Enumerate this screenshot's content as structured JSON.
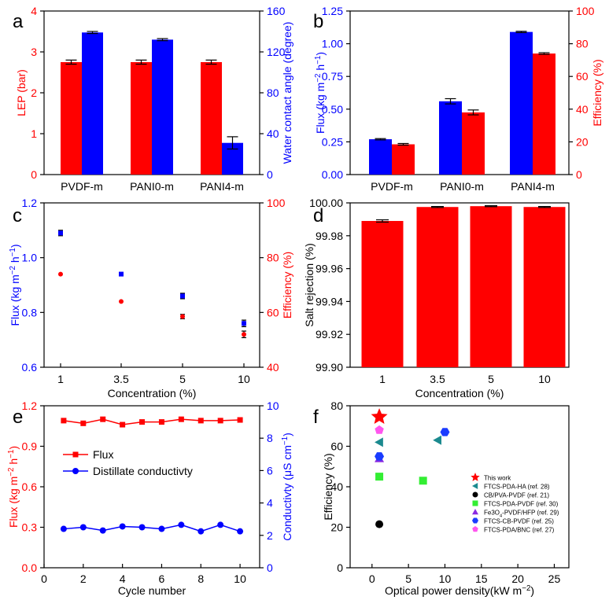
{
  "colors": {
    "red": "#ff0000",
    "blue": "#0000ff",
    "black": "#000000",
    "cyan": "#1b8a8f",
    "green": "#33ee33",
    "purple": "#8a2be2",
    "magenta": "#ff55ee",
    "bluehex": "#1a3cff"
  },
  "chart_data": [
    {
      "id": "a",
      "type": "bar",
      "panel_label": "a",
      "categories": [
        "PVDF-m",
        "PANI0-m",
        "PANI4-m"
      ],
      "ylabel": "LEP (bar)",
      "y2label": "Water contact angle (degree)",
      "ylim": [
        0,
        4
      ],
      "yticks": [
        "0",
        "1",
        "2",
        "3",
        "4"
      ],
      "y2lim": [
        0,
        160
      ],
      "y2ticks": [
        "0",
        "40",
        "80",
        "120",
        "160"
      ],
      "series": [
        {
          "name": "LEP",
          "axis": "left",
          "color": "#ff0000",
          "values": [
            2.75,
            2.75,
            2.75
          ],
          "errors": [
            0.05,
            0.05,
            0.05
          ]
        },
        {
          "name": "Water contact angle",
          "axis": "right",
          "color": "#0000ff",
          "values": [
            139,
            132,
            31
          ],
          "errors": [
            1,
            1,
            6
          ]
        }
      ]
    },
    {
      "id": "b",
      "type": "bar",
      "panel_label": "b",
      "categories": [
        "PVDF-m",
        "PANI0-m",
        "PANI4-m"
      ],
      "ylabel": "Flux (kg m-2 h-1)",
      "y2label": "Efficiency (%)",
      "ylim": [
        0,
        1.25
      ],
      "yticks": [
        "0.00",
        "0.25",
        "0.50",
        "0.75",
        "1.00",
        "1.25"
      ],
      "y2lim": [
        0,
        100
      ],
      "y2ticks": [
        "0",
        "20",
        "40",
        "60",
        "80",
        "100"
      ],
      "series": [
        {
          "name": "Flux",
          "axis": "left",
          "color": "#0000ff",
          "values": [
            0.27,
            0.56,
            1.09
          ],
          "errors": [
            0.005,
            0.02,
            0.005
          ]
        },
        {
          "name": "Efficiency",
          "axis": "right",
          "color": "#ff0000",
          "values": [
            18.5,
            38,
            74
          ],
          "errors": [
            0.5,
            1.5,
            0.5
          ]
        }
      ]
    },
    {
      "id": "c",
      "type": "scatter",
      "panel_label": "c",
      "categories": [
        "1",
        "3.5",
        "5",
        "10"
      ],
      "xlabel": "Concentration (%)",
      "ylabel": "Flux (kg m-2 h-1)",
      "y2label": "Efficiency (%)",
      "ylim": [
        0.6,
        1.2
      ],
      "yticks": [
        "0.6",
        "0.8",
        "1.0",
        "1.2"
      ],
      "y2lim": [
        40,
        100
      ],
      "y2ticks": [
        "40",
        "60",
        "80",
        "100"
      ],
      "series": [
        {
          "name": "Flux",
          "axis": "left",
          "color": "#0000ff",
          "marker": "square",
          "values": [
            1.09,
            0.94,
            0.86,
            0.76
          ],
          "errors": [
            0.01,
            0,
            0.01,
            0.012
          ]
        },
        {
          "name": "Efficiency",
          "axis": "right",
          "color": "#ff0000",
          "marker": "circle",
          "values": [
            74,
            64,
            58.5,
            52
          ],
          "errors": [
            0,
            0,
            0.8,
            1.2
          ]
        }
      ]
    },
    {
      "id": "d",
      "type": "bar",
      "panel_label": "d",
      "categories": [
        "1",
        "3.5",
        "5",
        "10"
      ],
      "xlabel": "Concentration (%)",
      "ylabel": "Salt rejection (%)",
      "ylim": [
        99.9,
        100.0
      ],
      "yticks": [
        "99.90",
        "99.92",
        "99.94",
        "99.96",
        "99.98",
        "100.00"
      ],
      "series": [
        {
          "name": "Salt rejection",
          "axis": "left",
          "color": "#ff0000",
          "values": [
            99.989,
            99.9975,
            99.998,
            99.9975
          ],
          "errors": [
            0.0007,
            0.0003,
            0.0003,
            0.0003
          ]
        }
      ]
    },
    {
      "id": "e",
      "type": "line",
      "panel_label": "e",
      "x": [
        1,
        2,
        3,
        4,
        5,
        6,
        7,
        8,
        9,
        10
      ],
      "xlabel": "Cycle number",
      "xlim": [
        0,
        11
      ],
      "xticks": [
        "0",
        "2",
        "4",
        "6",
        "8",
        "10"
      ],
      "ylabel": "Flux (kg m-2 h-1)",
      "y2label": "Conductivty (μS cm-1)",
      "ylim": [
        0,
        1.2
      ],
      "yticks": [
        "0.0",
        "0.3",
        "0.6",
        "0.9",
        "1.2"
      ],
      "y2lim": [
        0,
        10
      ],
      "y2ticks": [
        "0",
        "2",
        "4",
        "6",
        "8",
        "10"
      ],
      "series": [
        {
          "name": "Flux",
          "axis": "left",
          "color": "#ff0000",
          "marker": "square",
          "values": [
            1.09,
            1.07,
            1.1,
            1.06,
            1.08,
            1.08,
            1.1,
            1.09,
            1.09,
            1.095
          ]
        },
        {
          "name": "Distillate conductivty",
          "axis": "right",
          "color": "#0000ff",
          "marker": "circle",
          "values": [
            2.4,
            2.5,
            2.3,
            2.55,
            2.5,
            2.4,
            2.65,
            2.25,
            2.65,
            2.25
          ]
        }
      ],
      "legend": [
        "Flux",
        "Distillate conductivty"
      ]
    },
    {
      "id": "f",
      "type": "scatter",
      "panel_label": "f",
      "xlabel": "Optical power density(kW m-2)",
      "xlim": [
        -3,
        27
      ],
      "xticks": [
        "0",
        "5",
        "10",
        "15",
        "20",
        "25"
      ],
      "ylabel": "Efficiency (%)",
      "ylim": [
        0,
        80
      ],
      "yticks": [
        "0",
        "20",
        "40",
        "60",
        "80"
      ],
      "points": [
        {
          "name": "This work",
          "marker": "star",
          "color": "#ff0000",
          "x": 1,
          "y": 74.5
        },
        {
          "name": "FTCS-PDA-HA (ref. 28)",
          "marker": "triangle-left",
          "color": "#1b8a8f",
          "x": 1,
          "y": 62
        },
        {
          "name": "FTCS-PDA-HA (ref. 28)",
          "marker": "triangle-left",
          "color": "#1b8a8f",
          "x": 9,
          "y": 63
        },
        {
          "name": "CB/PVA-PVDF (ref. 21)",
          "marker": "circle",
          "color": "#000000",
          "x": 1,
          "y": 21.5
        },
        {
          "name": "FTCS-PDA-PVDF (ref. 30)",
          "marker": "square",
          "color": "#33ee33",
          "x": 1,
          "y": 45
        },
        {
          "name": "FTCS-PDA-PVDF (ref. 30)",
          "marker": "square",
          "color": "#33ee33",
          "x": 7,
          "y": 43
        },
        {
          "name": "Fe3O4-PVDF/HFP (ref. 29)",
          "marker": "triangle-up",
          "color": "#8a2be2",
          "x": 1,
          "y": 54
        },
        {
          "name": "FTCS-CB-PVDF (ref. 25)",
          "marker": "hexagon",
          "color": "#1a3cff",
          "x": 1,
          "y": 55
        },
        {
          "name": "FTCS-CB-PVDF (ref. 25)",
          "marker": "hexagon",
          "color": "#1a3cff",
          "x": 10,
          "y": 67
        },
        {
          "name": "FTCS-PDA/BNC (ref. 27)",
          "marker": "pentagon",
          "color": "#ff55ee",
          "x": 1,
          "y": 68
        }
      ],
      "legend": [
        {
          "label": "This work",
          "marker": "star",
          "color": "#ff0000"
        },
        {
          "label": "FTCS-PDA-HA (ref. 28)",
          "marker": "triangle-left",
          "color": "#1b8a8f"
        },
        {
          "label": "CB/PVA-PVDF (ref. 21)",
          "marker": "circle",
          "color": "#000000"
        },
        {
          "label": "FTCS-PDA-PVDF (ref. 30)",
          "marker": "square",
          "color": "#33ee33"
        },
        {
          "label": "Fe3O4-PVDF/HFP (ref. 29)",
          "marker": "triangle-up",
          "color": "#8a2be2"
        },
        {
          "label": "FTCS-CB-PVDF (ref. 25)",
          "marker": "hexagon",
          "color": "#1a3cff"
        },
        {
          "label": "FTCS-PDA/BNC (ref. 27)",
          "marker": "pentagon",
          "color": "#ff55ee"
        }
      ]
    }
  ]
}
